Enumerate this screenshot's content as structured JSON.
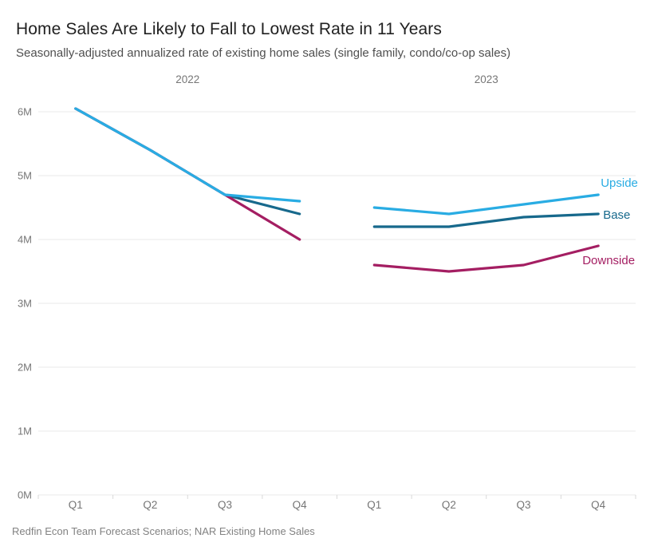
{
  "header": {
    "title": "Home Sales Are Likely to Fall to Lowest Rate in 11 Years",
    "subtitle": "Seasonally-adjusted annualized rate of existing home sales (single family, condo/co-op sales)"
  },
  "source": "Redfin Econ Team Forecast Scenarios; NAR Existing Home Sales",
  "chart_data": {
    "type": "line",
    "unit": "millions of homes (SAAR)",
    "categories": [
      "Q1",
      "Q2",
      "Q3",
      "Q4",
      "Q1",
      "Q2",
      "Q3",
      "Q4"
    ],
    "groups": [
      {
        "label": "2022",
        "start": 0,
        "end": 3
      },
      {
        "label": "2023",
        "start": 4,
        "end": 7
      }
    ],
    "yticks": [
      "0M",
      "1M",
      "2M",
      "3M",
      "4M",
      "5M",
      "6M"
    ],
    "ylim": [
      0,
      6.5
    ],
    "grid": true,
    "legend_position": "line-end-labels-right",
    "series": [
      {
        "name": "Base",
        "color": "#17698C",
        "label_offset": {
          "dx": 6,
          "dy": 1
        },
        "segments": [
          {
            "start": 0,
            "values": [
              6.05,
              5.4,
              4.7,
              4.4
            ]
          },
          {
            "start": 4,
            "values": [
              4.2,
              4.2,
              4.35,
              4.4
            ]
          }
        ]
      },
      {
        "name": "Downside",
        "color": "#A41E62",
        "label_offset": {
          "dx": -20,
          "dy": 18
        },
        "segments": [
          {
            "start": 0,
            "values": [
              6.05,
              5.4,
              4.7,
              4.0
            ]
          },
          {
            "start": 4,
            "values": [
              3.6,
              3.5,
              3.6,
              3.9
            ]
          }
        ]
      },
      {
        "name": "Upside",
        "color": "#29ACE3",
        "label_offset": {
          "dx": 3,
          "dy": -15
        },
        "segments": [
          {
            "start": 0,
            "values": [
              6.05,
              5.4,
              4.7,
              4.6
            ]
          },
          {
            "start": 4,
            "values": [
              4.5,
              4.4,
              4.55,
              4.7
            ]
          }
        ]
      }
    ]
  }
}
